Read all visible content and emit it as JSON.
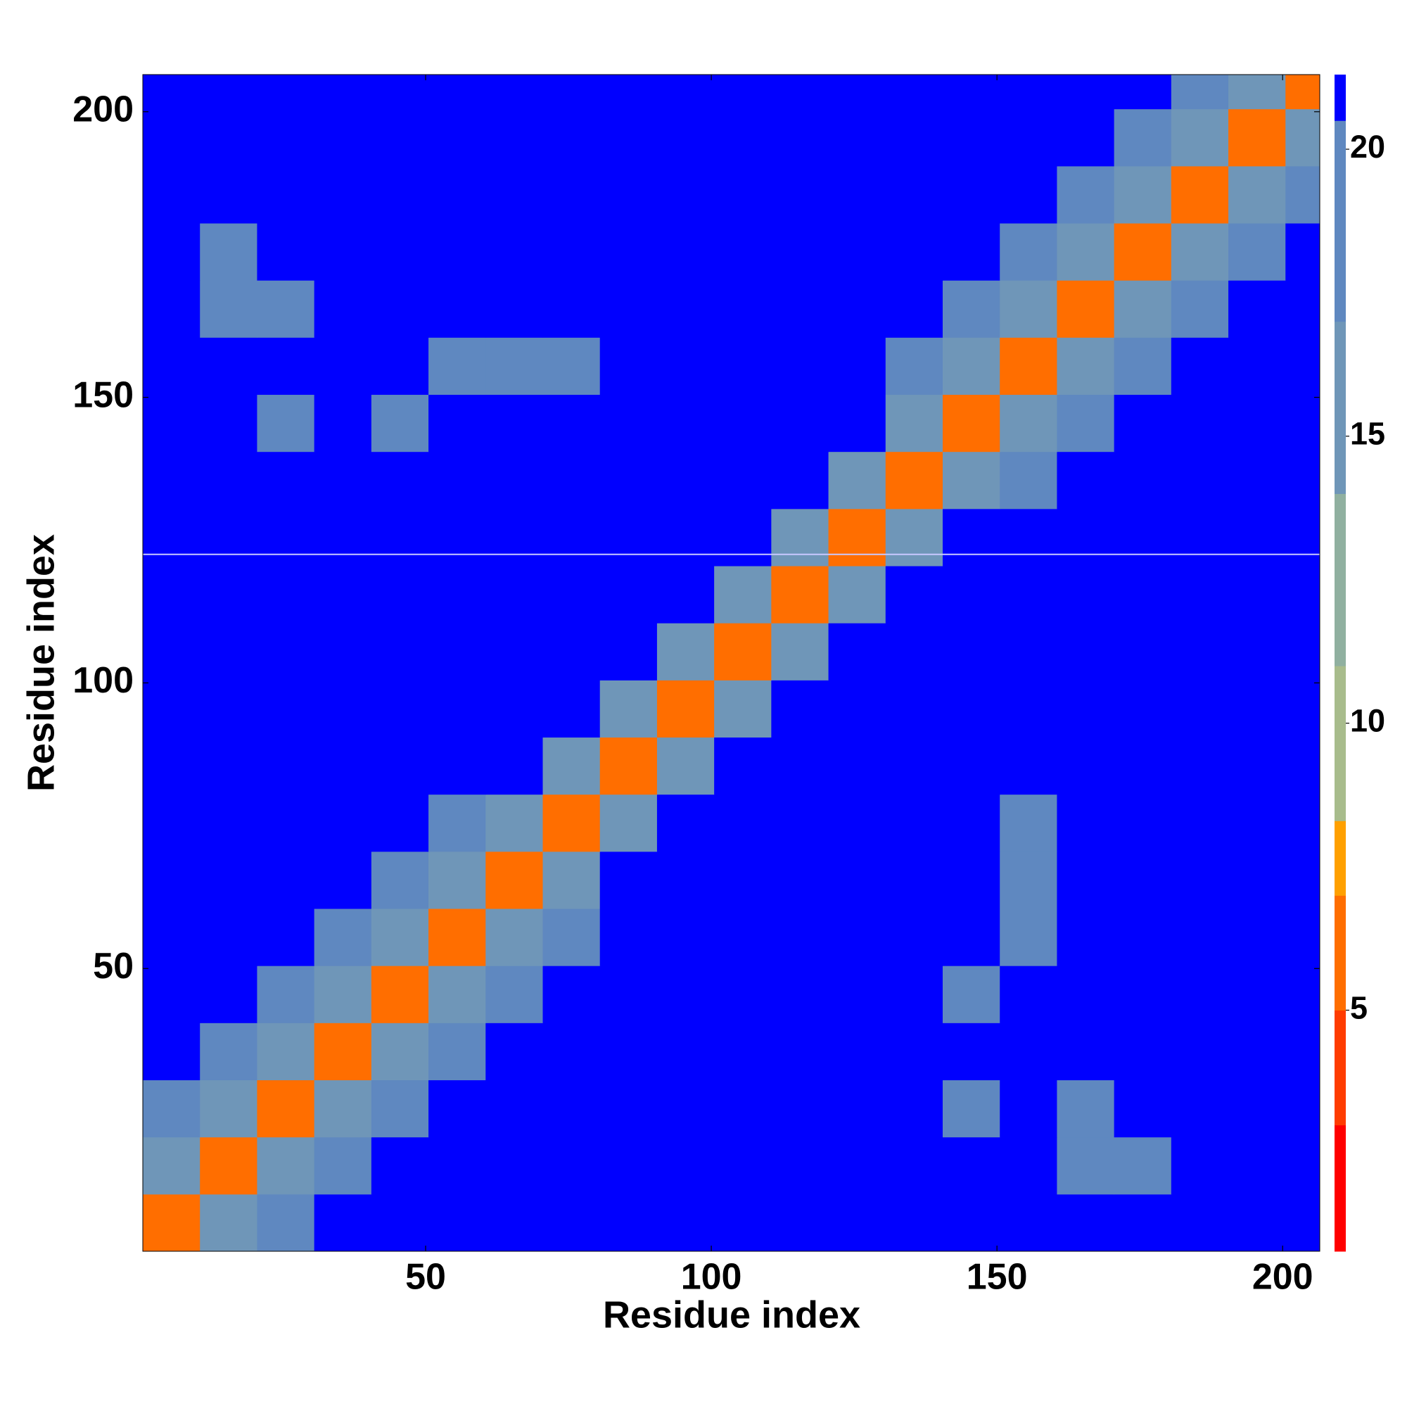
{
  "chart_data": {
    "type": "heatmap",
    "x_label": "Residue index",
    "y_label": "Residue index",
    "xbins": [
      0.5,
      10.5,
      20.5,
      30.5,
      40.5,
      50.5,
      60.5,
      70.5,
      80.5,
      90.5,
      100.5,
      110.5,
      120.5,
      130.5,
      140.5,
      150.5,
      160.5,
      170.5,
      180.5,
      190.5,
      200.5,
      206.5
    ],
    "ybins": [
      0.5,
      10.5,
      20.5,
      30.5,
      40.5,
      50.5,
      60.5,
      70.5,
      80.5,
      90.5,
      100.5,
      110.5,
      120.5,
      130.5,
      140.5,
      150.5,
      160.5,
      170.5,
      180.5,
      190.5,
      200.5,
      206.5
    ],
    "xlim": [
      0.5,
      206.5
    ],
    "ylim": [
      0.5,
      206.5
    ],
    "xticks": [
      50,
      100,
      150,
      200
    ],
    "yticks": [
      50,
      100,
      150,
      200
    ],
    "hline": 122.5,
    "z": [
      [
        6,
        16,
        18,
        21,
        21,
        21,
        21,
        21,
        21,
        21,
        21,
        21,
        21,
        21,
        21,
        21,
        21,
        21,
        21,
        21,
        21
      ],
      [
        16,
        6,
        16,
        18,
        21,
        21,
        21,
        21,
        21,
        21,
        21,
        21,
        21,
        21,
        21,
        21,
        18,
        18,
        21,
        21,
        21
      ],
      [
        18,
        16,
        6,
        16,
        18,
        21,
        21,
        21,
        21,
        21,
        21,
        21,
        21,
        21,
        18,
        21,
        18,
        21,
        21,
        21,
        21
      ],
      [
        21,
        18,
        16,
        6,
        16,
        18,
        21,
        21,
        21,
        21,
        21,
        21,
        21,
        21,
        21,
        21,
        21,
        21,
        21,
        21,
        21
      ],
      [
        21,
        21,
        18,
        16,
        6,
        16,
        18,
        21,
        21,
        21,
        21,
        21,
        21,
        21,
        18,
        21,
        21,
        21,
        21,
        21,
        21
      ],
      [
        21,
        21,
        21,
        18,
        16,
        6,
        16,
        18,
        21,
        21,
        21,
        21,
        21,
        21,
        21,
        18,
        21,
        21,
        21,
        21,
        21
      ],
      [
        21,
        21,
        21,
        21,
        18,
        16,
        6,
        16,
        21,
        21,
        21,
        21,
        21,
        21,
        21,
        18,
        21,
        21,
        21,
        21,
        21
      ],
      [
        21,
        21,
        21,
        21,
        21,
        18,
        16,
        6,
        16,
        21,
        21,
        21,
        21,
        21,
        21,
        18,
        21,
        21,
        21,
        21,
        21
      ],
      [
        21,
        21,
        21,
        21,
        21,
        21,
        21,
        16,
        6,
        16,
        21,
        21,
        21,
        21,
        21,
        21,
        21,
        21,
        21,
        21,
        21
      ],
      [
        21,
        21,
        21,
        21,
        21,
        21,
        21,
        21,
        16,
        6,
        16,
        21,
        21,
        21,
        21,
        21,
        21,
        21,
        21,
        21,
        21
      ],
      [
        21,
        21,
        21,
        21,
        21,
        21,
        21,
        21,
        21,
        16,
        6,
        16,
        21,
        21,
        21,
        21,
        21,
        21,
        21,
        21,
        21
      ],
      [
        21,
        21,
        21,
        21,
        21,
        21,
        21,
        21,
        21,
        21,
        16,
        6,
        16,
        21,
        21,
        21,
        21,
        21,
        21,
        21,
        21
      ],
      [
        21,
        21,
        21,
        21,
        21,
        21,
        21,
        21,
        21,
        21,
        21,
        16,
        6,
        16,
        21,
        21,
        21,
        21,
        21,
        21,
        21
      ],
      [
        21,
        21,
        21,
        21,
        21,
        21,
        21,
        21,
        21,
        21,
        21,
        21,
        16,
        6,
        16,
        18,
        21,
        21,
        21,
        21,
        21
      ],
      [
        21,
        21,
        18,
        21,
        18,
        21,
        21,
        21,
        21,
        21,
        21,
        21,
        21,
        16,
        6,
        16,
        18,
        21,
        21,
        21,
        21
      ],
      [
        21,
        21,
        21,
        21,
        21,
        18,
        18,
        18,
        21,
        21,
        21,
        21,
        21,
        18,
        16,
        6,
        16,
        18,
        21,
        21,
        21
      ],
      [
        21,
        18,
        18,
        21,
        21,
        21,
        21,
        21,
        21,
        21,
        21,
        21,
        21,
        21,
        18,
        16,
        6,
        16,
        18,
        21,
        21
      ],
      [
        21,
        18,
        21,
        21,
        21,
        21,
        21,
        21,
        21,
        21,
        21,
        21,
        21,
        21,
        21,
        18,
        16,
        6,
        16,
        18,
        21
      ],
      [
        21,
        21,
        21,
        21,
        21,
        21,
        21,
        21,
        21,
        21,
        21,
        21,
        21,
        21,
        21,
        21,
        18,
        16,
        6,
        16,
        18
      ],
      [
        21,
        21,
        21,
        21,
        21,
        21,
        21,
        21,
        21,
        21,
        21,
        21,
        21,
        21,
        21,
        21,
        21,
        18,
        16,
        6,
        16
      ],
      [
        21,
        21,
        21,
        21,
        21,
        21,
        21,
        21,
        21,
        21,
        21,
        21,
        21,
        21,
        21,
        21,
        21,
        21,
        18,
        16,
        6
      ]
    ],
    "colorscale": [
      {
        "value": 0.8,
        "color": "#ff0000"
      },
      {
        "value": 3,
        "color": "#ff3c00"
      },
      {
        "value": 5,
        "color": "#ff6e00"
      },
      {
        "value": 7,
        "color": "#ffa000"
      },
      {
        "value": 8.3,
        "color": "#a8bc8c"
      },
      {
        "value": 11,
        "color": "#90b0a0"
      },
      {
        "value": 14,
        "color": "#6f96b8"
      },
      {
        "value": 17,
        "color": "#5f88c0"
      },
      {
        "value": 20.5,
        "color": "#0000ff"
      }
    ],
    "colorbar_lim": [
      0.8,
      21.3
    ],
    "colorbar_ticks": [
      5,
      10,
      15,
      20
    ]
  }
}
